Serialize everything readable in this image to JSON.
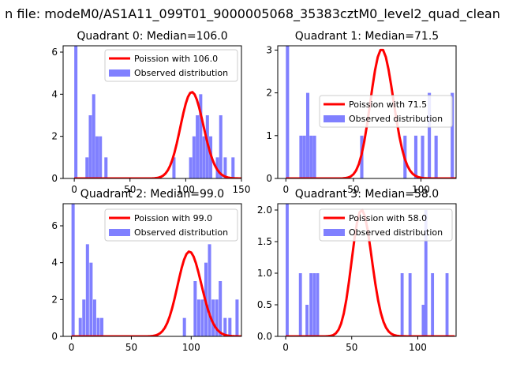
{
  "figure": {
    "suptitle": "n file: modeM0/AS1A11_099T01_9000005068_35383cztM0_level2_quad_clean",
    "line_color": "#ff0000",
    "bar_color": "#8080ff"
  },
  "chart_data": [
    {
      "type": "bar",
      "title": "Quadrant 0: Median=106.0",
      "median": 106.0,
      "xlim": [
        -10,
        150
      ],
      "ylim": [
        0,
        6.3
      ],
      "xticks": [
        0,
        50,
        100,
        150
      ],
      "xtick_labels": [
        "0",
        "50",
        "100",
        "150"
      ],
      "yticks": [
        0,
        2,
        4,
        6
      ],
      "ytick_labels": [
        "0",
        "2",
        "4",
        "6"
      ],
      "bin_width": 2.85,
      "histogram": [
        {
          "x": 0,
          "count": 6.3
        },
        {
          "x": 10,
          "count": 1
        },
        {
          "x": 13,
          "count": 3
        },
        {
          "x": 16,
          "count": 4
        },
        {
          "x": 19,
          "count": 2
        },
        {
          "x": 22,
          "count": 2
        },
        {
          "x": 27,
          "count": 1
        },
        {
          "x": 88,
          "count": 1
        },
        {
          "x": 103,
          "count": 1
        },
        {
          "x": 106,
          "count": 2
        },
        {
          "x": 109,
          "count": 3
        },
        {
          "x": 112,
          "count": 4
        },
        {
          "x": 115,
          "count": 2
        },
        {
          "x": 118,
          "count": 3
        },
        {
          "x": 121,
          "count": 2
        },
        {
          "x": 127,
          "count": 1
        },
        {
          "x": 130,
          "count": 3
        },
        {
          "x": 134,
          "count": 1
        },
        {
          "x": 141,
          "count": 1
        }
      ],
      "legend": {
        "position": "upper-right",
        "line_label": "Poission with 106.0",
        "bar_label": "Observed distribution"
      }
    },
    {
      "type": "bar",
      "title": "Quadrant 1: Median=71.5",
      "median": 71.5,
      "xlim": [
        -6,
        126
      ],
      "ylim": [
        0,
        3.1
      ],
      "xticks": [
        0,
        50,
        100
      ],
      "xtick_labels": [
        "0",
        "50",
        "100"
      ],
      "yticks": [
        0,
        1,
        2,
        3
      ],
      "ytick_labels": [
        "0",
        "1",
        "2",
        "3"
      ],
      "bin_width": 2.4,
      "histogram": [
        {
          "x": 0,
          "count": 3.1
        },
        {
          "x": 10,
          "count": 1
        },
        {
          "x": 12.5,
          "count": 1
        },
        {
          "x": 15,
          "count": 2
        },
        {
          "x": 17.5,
          "count": 1
        },
        {
          "x": 20,
          "count": 1
        },
        {
          "x": 55,
          "count": 1
        },
        {
          "x": 87,
          "count": 1
        },
        {
          "x": 95,
          "count": 1
        },
        {
          "x": 100,
          "count": 1
        },
        {
          "x": 105,
          "count": 2
        },
        {
          "x": 110,
          "count": 1
        },
        {
          "x": 122,
          "count": 2
        }
      ],
      "legend": {
        "position": "center-right",
        "line_label": "Poission with 71.5",
        "bar_label": "Observed distribution"
      }
    },
    {
      "type": "bar",
      "title": "Quadrant 2: Median=99.0",
      "median": 99.0,
      "xlim": [
        -7,
        142
      ],
      "ylim": [
        0,
        7.2
      ],
      "xticks": [
        0,
        50,
        100
      ],
      "xtick_labels": [
        "0",
        "50",
        "100"
      ],
      "yticks": [
        0,
        2,
        4,
        6
      ],
      "ytick_labels": [
        "0",
        "2",
        "4",
        "6"
      ],
      "bin_width": 2.65,
      "histogram": [
        {
          "x": 0,
          "count": 7.2
        },
        {
          "x": 6,
          "count": 1
        },
        {
          "x": 9,
          "count": 2
        },
        {
          "x": 12,
          "count": 5
        },
        {
          "x": 15,
          "count": 4
        },
        {
          "x": 18,
          "count": 2
        },
        {
          "x": 21,
          "count": 1
        },
        {
          "x": 24,
          "count": 1
        },
        {
          "x": 93,
          "count": 1
        },
        {
          "x": 102,
          "count": 3
        },
        {
          "x": 105,
          "count": 2
        },
        {
          "x": 108,
          "count": 2
        },
        {
          "x": 111,
          "count": 4
        },
        {
          "x": 114,
          "count": 5
        },
        {
          "x": 117,
          "count": 2
        },
        {
          "x": 120,
          "count": 2
        },
        {
          "x": 123,
          "count": 3
        },
        {
          "x": 127,
          "count": 1
        },
        {
          "x": 131,
          "count": 1
        },
        {
          "x": 137,
          "count": 2
        }
      ],
      "legend": {
        "position": "upper-right",
        "line_label": "Poission with 99.0",
        "bar_label": "Observed distribution"
      }
    },
    {
      "type": "bar",
      "title": "Quadrant 3: Median=58.0",
      "median": 58.0,
      "xlim": [
        -6,
        129
      ],
      "ylim": [
        0,
        2.1
      ],
      "xticks": [
        0,
        50,
        100
      ],
      "xtick_labels": [
        "0",
        "50",
        "100"
      ],
      "yticks": [
        0.0,
        0.5,
        1.0,
        1.5,
        2.0
      ],
      "ytick_labels": [
        "0.0",
        "0.5",
        "1.0",
        "1.5",
        "2.0"
      ],
      "bin_width": 2.3,
      "histogram": [
        {
          "x": 0,
          "count": 2.1
        },
        {
          "x": 10,
          "count": 1
        },
        {
          "x": 15,
          "count": 0.5
        },
        {
          "x": 18,
          "count": 1
        },
        {
          "x": 20.5,
          "count": 1
        },
        {
          "x": 23,
          "count": 1
        },
        {
          "x": 87,
          "count": 1
        },
        {
          "x": 93,
          "count": 1
        },
        {
          "x": 103,
          "count": 0.5
        },
        {
          "x": 105,
          "count": 2
        },
        {
          "x": 110,
          "count": 1
        },
        {
          "x": 121,
          "count": 1
        }
      ],
      "legend": {
        "position": "upper-right",
        "line_label": "Poission with 58.0",
        "bar_label": "Observed distribution"
      }
    }
  ]
}
